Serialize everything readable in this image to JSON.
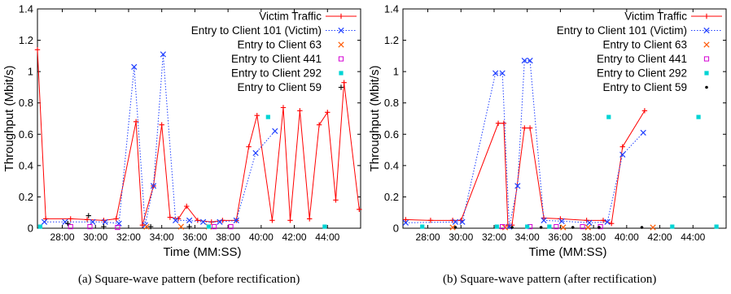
{
  "colors": {
    "victim": "#ff0000",
    "client101": "#1f3fff",
    "client63": "#ff5a00",
    "client441": "#d400d4",
    "client292": "#00d4d4",
    "client59": "#000000"
  },
  "captions": {
    "a": "(a) Square-wave pattern (before rectification)",
    "b": "(b) Square-wave pattern (after rectification)"
  },
  "chart_data": [
    {
      "type": "line",
      "xlabel": "Time (MM:SS)",
      "ylabel": "Throughput (Mbit/s)",
      "xlim": [
        1590,
        2760
      ],
      "ylim": [
        0,
        1.4
      ],
      "yticks": [
        "0",
        "0.2",
        "0.4",
        "0.6",
        "0.8",
        "1",
        "1.2",
        "1.4"
      ],
      "xticks": [
        {
          "v": 1680,
          "label": "28:00"
        },
        {
          "v": 1800,
          "label": "30:00"
        },
        {
          "v": 1920,
          "label": "32:00"
        },
        {
          "v": 2040,
          "label": "34:00"
        },
        {
          "v": 2160,
          "label": "36:00"
        },
        {
          "v": 2280,
          "label": "38:00"
        },
        {
          "v": 2400,
          "label": "40:00"
        },
        {
          "v": 2520,
          "label": "42:00"
        },
        {
          "v": 2640,
          "label": "44:00"
        }
      ],
      "legend_position": "top-right",
      "series": [
        {
          "name": "Victim Traffic",
          "color_key": "victim",
          "marker": "+",
          "line": "solid",
          "points": [
            [
              1590,
              1.14
            ],
            [
              1620,
              0.06
            ],
            [
              1710,
              0.06
            ],
            [
              1770,
              0.055
            ],
            [
              1830,
              0.05
            ],
            [
              1875,
              0.06
            ],
            [
              1947,
              0.68
            ],
            [
              1970,
              0.02
            ],
            [
              2010,
              0.27
            ],
            [
              2040,
              0.66
            ],
            [
              2070,
              0.07
            ],
            [
              2100,
              0.06
            ],
            [
              2130,
              0.14
            ],
            [
              2170,
              0.05
            ],
            [
              2220,
              0.04
            ],
            [
              2260,
              0.05
            ],
            [
              2310,
              0.05
            ],
            [
              2355,
              0.52
            ],
            [
              2385,
              0.72
            ],
            [
              2440,
              0.05
            ],
            [
              2480,
              0.77
            ],
            [
              2505,
              0.05
            ],
            [
              2540,
              0.75
            ],
            [
              2575,
              0.06
            ],
            [
              2610,
              0.66
            ],
            [
              2640,
              0.74
            ],
            [
              2670,
              0.18
            ],
            [
              2700,
              0.93
            ],
            [
              2755,
              0.12
            ]
          ]
        },
        {
          "name": "Entry to Client 101 (Victim)",
          "color_key": "client101",
          "marker": "x",
          "line": "dotted",
          "points": [
            [
              1615,
              0.04
            ],
            [
              1690,
              0.04
            ],
            [
              1790,
              0.04
            ],
            [
              1835,
              0.04
            ],
            [
              1885,
              0.03
            ],
            [
              1940,
              1.03
            ],
            [
              1980,
              0.02
            ],
            [
              2010,
              0.27
            ],
            [
              2045,
              1.11
            ],
            [
              2090,
              0.05
            ],
            [
              2140,
              0.05
            ],
            [
              2190,
              0.04
            ],
            [
              2250,
              0.04
            ],
            [
              2310,
              0.05
            ],
            [
              2380,
              0.48
            ],
            [
              2450,
              0.62
            ]
          ]
        },
        {
          "name": "Entry to Client 63",
          "color_key": "client63",
          "marker": "x",
          "line": "none",
          "points": [
            [
              1985,
              0.01
            ],
            [
              2110,
              0.01
            ],
            [
              2210,
              0.01
            ]
          ]
        },
        {
          "name": "Entry to Client 441",
          "color_key": "client441",
          "marker": "sq",
          "line": "none",
          "points": [
            [
              1710,
              0.01
            ],
            [
              1780,
              0.01
            ],
            [
              1880,
              0.005
            ],
            [
              2230,
              0.01
            ],
            [
              2290,
              0.01
            ]
          ]
        },
        {
          "name": "Entry to Client 292",
          "color_key": "client292",
          "marker": "fsq",
          "line": "none",
          "points": [
            [
              1600,
              0.01
            ],
            [
              2210,
              0.01
            ],
            [
              2425,
              0.71
            ],
            [
              2630,
              0.01
            ]
          ]
        },
        {
          "name": "Entry to Client 59",
          "color_key": "client59",
          "marker": "+",
          "line": "none",
          "points": [
            [
              1700,
              0.03
            ],
            [
              1775,
              0.08
            ],
            [
              1830,
              0.01
            ],
            [
              2000,
              0.01
            ],
            [
              2140,
              0.01
            ]
          ]
        }
      ]
    },
    {
      "type": "line",
      "xlabel": "Time (MM:SS)",
      "ylabel": "Throughput (Mbit/s)",
      "xlim": [
        1590,
        2760
      ],
      "ylim": [
        0,
        1.4
      ],
      "yticks": [
        "0",
        "0.2",
        "0.4",
        "0.6",
        "0.8",
        "1",
        "1.2",
        "1.4"
      ],
      "xticks": [
        {
          "v": 1680,
          "label": "28:00"
        },
        {
          "v": 1800,
          "label": "30:00"
        },
        {
          "v": 1920,
          "label": "32:00"
        },
        {
          "v": 2040,
          "label": "34:00"
        },
        {
          "v": 2160,
          "label": "36:00"
        },
        {
          "v": 2280,
          "label": "38:00"
        },
        {
          "v": 2400,
          "label": "40:00"
        },
        {
          "v": 2520,
          "label": "42:00"
        },
        {
          "v": 2640,
          "label": "44:00"
        }
      ],
      "legend_position": "top-right",
      "series": [
        {
          "name": "Victim Traffic",
          "color_key": "victim",
          "marker": "+",
          "line": "solid",
          "points": [
            [
              1600,
              0.055
            ],
            [
              1690,
              0.05
            ],
            [
              1770,
              0.05
            ],
            [
              1800,
              0.05
            ],
            [
              1935,
              0.67
            ],
            [
              1955,
              0.67
            ],
            [
              1970,
              0.02
            ],
            [
              1985,
              0.02
            ],
            [
              2030,
              0.64
            ],
            [
              2050,
              0.64
            ],
            [
              2100,
              0.065
            ],
            [
              2160,
              0.06
            ],
            [
              2255,
              0.05
            ],
            [
              2315,
              0.05
            ],
            [
              2345,
              0.03
            ],
            [
              2385,
              0.52
            ],
            [
              2465,
              0.75
            ]
          ]
        },
        {
          "name": "Entry to Client 101 (Victim)",
          "color_key": "client101",
          "marker": "x",
          "line": "dotted",
          "points": [
            [
              1600,
              0.035
            ],
            [
              1780,
              0.04
            ],
            [
              1805,
              0.04
            ],
            [
              1925,
              0.99
            ],
            [
              1950,
              0.99
            ],
            [
              1975,
              0.01
            ],
            [
              2005,
              0.27
            ],
            [
              2030,
              1.07
            ],
            [
              2050,
              1.07
            ],
            [
              2100,
              0.05
            ],
            [
              2165,
              0.045
            ],
            [
              2265,
              0.035
            ],
            [
              2330,
              0.04
            ],
            [
              2385,
              0.47
            ],
            [
              2460,
              0.61
            ]
          ]
        },
        {
          "name": "Entry to Client 63",
          "color_key": "client63",
          "marker": "x",
          "line": "none",
          "points": [
            [
              1770,
              0.005
            ],
            [
              1960,
              0.005
            ],
            [
              2170,
              0.005
            ],
            [
              2260,
              0.005
            ],
            [
              2495,
              0.005
            ]
          ]
        },
        {
          "name": "Entry to Client 441",
          "color_key": "client441",
          "marker": "sq",
          "line": "none",
          "points": [
            [
              1950,
              0.01
            ],
            [
              2050,
              0.01
            ],
            [
              2145,
              0.01
            ],
            [
              2240,
              0.01
            ],
            [
              2305,
              0.01
            ]
          ]
        },
        {
          "name": "Entry to Client 292",
          "color_key": "client292",
          "marker": "fsq",
          "line": "none",
          "points": [
            [
              1660,
              0.01
            ],
            [
              1930,
              0.01
            ],
            [
              2040,
              0.01
            ],
            [
              2120,
              0.01
            ],
            [
              2335,
              0.71
            ],
            [
              2565,
              0.01
            ],
            [
              2660,
              0.71
            ],
            [
              2725,
              0.01
            ]
          ]
        },
        {
          "name": "Entry to Client 59",
          "color_key": "client59",
          "marker": "dot",
          "line": "none",
          "points": [
            [
              1780,
              0.005
            ],
            [
              1985,
              0.005
            ],
            [
              2090,
              0.005
            ],
            [
              2205,
              0.005
            ],
            [
              2300,
              0.005
            ],
            [
              2455,
              0.005
            ]
          ]
        }
      ]
    }
  ]
}
